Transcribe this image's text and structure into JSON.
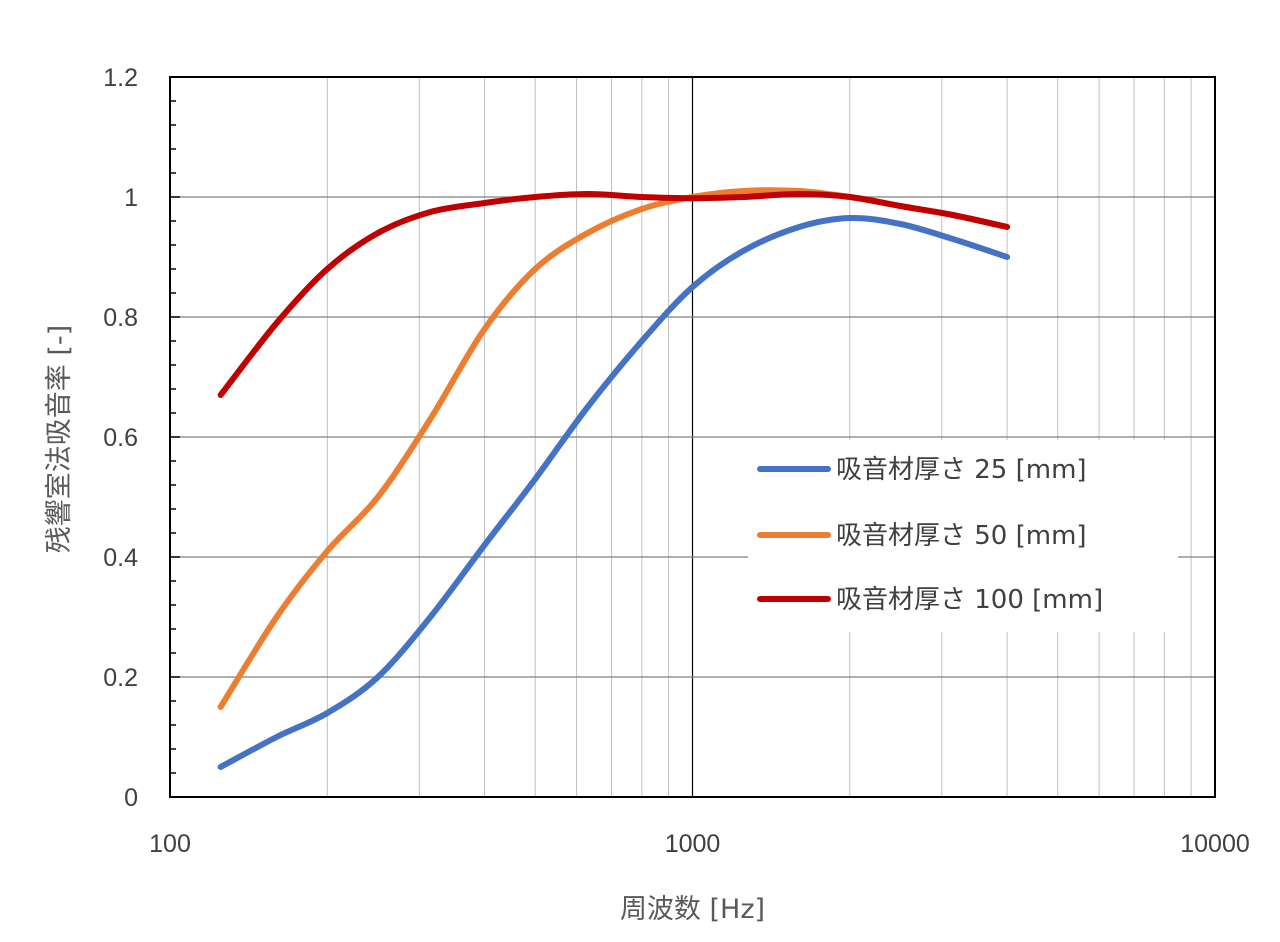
{
  "chart_data": {
    "type": "line",
    "title": "",
    "xlabel": "周波数 [Hz]",
    "ylabel": "残響室法吸音率 [-]",
    "x_scale": "log",
    "xlim": [
      100,
      10000
    ],
    "ylim": [
      0,
      1.2
    ],
    "x_ticks": [
      "100",
      "1000",
      "10000"
    ],
    "y_ticks": [
      "0",
      "0.2",
      "0.4",
      "0.6",
      "0.8",
      "1",
      "1.2"
    ],
    "grid": true,
    "legend_position": "right-middle",
    "x": [
      125,
      160,
      200,
      250,
      315,
      400,
      500,
      630,
      800,
      1000,
      1250,
      1600,
      2000,
      2500,
      3150,
      4000
    ],
    "series": [
      {
        "name": "吸音材厚さ 25 [mm]",
        "color": "#4472C4",
        "values": [
          0.05,
          0.1,
          0.14,
          0.2,
          0.3,
          0.42,
          0.53,
          0.65,
          0.76,
          0.85,
          0.91,
          0.95,
          0.965,
          0.955,
          0.93,
          0.9
        ]
      },
      {
        "name": "吸音材厚さ 50 [mm]",
        "color": "#ED7D31",
        "values": [
          0.15,
          0.3,
          0.41,
          0.5,
          0.63,
          0.78,
          0.88,
          0.94,
          0.98,
          1.0,
          1.01,
          1.01,
          1.0,
          0.985,
          0.97,
          0.95
        ]
      },
      {
        "name": "吸音材厚さ 100 [mm]",
        "color": "#C00000",
        "values": [
          0.67,
          0.79,
          0.88,
          0.94,
          0.975,
          0.99,
          1.0,
          1.005,
          1.0,
          0.998,
          1.0,
          1.005,
          1.0,
          0.985,
          0.97,
          0.95
        ]
      }
    ]
  }
}
